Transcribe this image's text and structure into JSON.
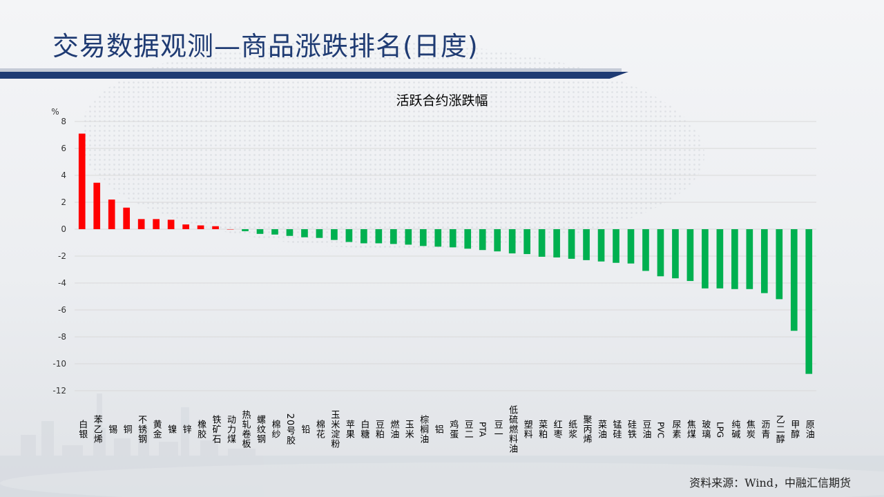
{
  "page": {
    "title": "交易数据观测—商品涨跌排名(日度)",
    "source": "资料来源：Wind，中融汇信期货"
  },
  "colors": {
    "title": "#1f3b73",
    "bar_up": "#ff0000",
    "bar_down": "#00b050",
    "grid": "#d9d9d9"
  },
  "chart_data": {
    "type": "bar",
    "title": "活跃合约涨跌幅",
    "ylabel": "%",
    "ylim": [
      -12,
      8
    ],
    "yticks": [
      8,
      6,
      4,
      2,
      0,
      -2,
      -4,
      -6,
      -8,
      -10,
      -12
    ],
    "grid": true,
    "categories": [
      "白银",
      "苯乙烯",
      "锡",
      "铜",
      "不锈钢",
      "黄金",
      "镍",
      "锌",
      "橡胶",
      "铁矿石",
      "动力煤",
      "热轧卷板",
      "螺纹钢",
      "棉纱",
      "20号胶",
      "铅",
      "棉花",
      "玉米淀粉",
      "苹果",
      "白糖",
      "豆粕",
      "燃油",
      "玉米",
      "棕榈油",
      "铝",
      "鸡蛋",
      "豆二",
      "PTA",
      "豆一",
      "低硫燃料油",
      "塑料",
      "菜粕",
      "红枣",
      "纸浆",
      "聚丙烯",
      "菜油",
      "锰硅",
      "硅铁",
      "豆油",
      "PVC",
      "尿素",
      "焦煤",
      "玻璃",
      "LPG",
      "纯碱",
      "焦炭",
      "沥青",
      "乙二醇",
      "甲醇",
      "原油"
    ],
    "values": [
      7.1,
      3.45,
      2.2,
      1.6,
      0.75,
      0.75,
      0.7,
      0.35,
      0.28,
      0.22,
      0.0,
      -0.15,
      -0.35,
      -0.4,
      -0.5,
      -0.6,
      -0.65,
      -0.8,
      -0.95,
      -1.05,
      -1.05,
      -1.1,
      -1.15,
      -1.25,
      -1.3,
      -1.35,
      -1.45,
      -1.55,
      -1.65,
      -1.8,
      -1.85,
      -2.05,
      -2.1,
      -2.2,
      -2.3,
      -2.4,
      -2.5,
      -2.55,
      -3.1,
      -3.5,
      -3.65,
      -3.85,
      -4.4,
      -4.4,
      -4.45,
      -4.45,
      -4.75,
      -5.2,
      -7.55,
      -10.75
    ]
  }
}
